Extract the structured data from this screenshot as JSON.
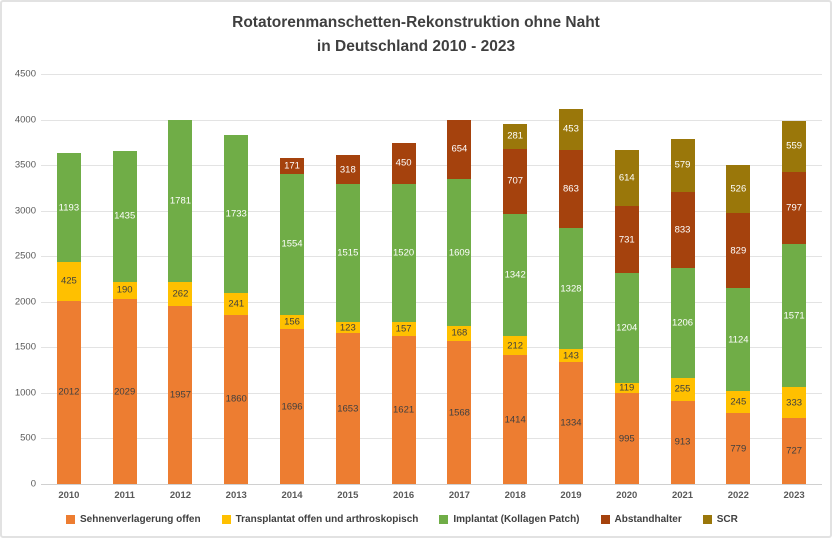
{
  "figure": {
    "title_line1": "Rotatorenmanschetten-Rekonstruktion ohne Naht",
    "title_line2": "in Deutschland 2010 - 2023"
  },
  "chart_data": {
    "type": "bar",
    "stacked": true,
    "title": "Rotatorenmanschetten-Rekonstruktion ohne Naht in Deutschland 2010 - 2023",
    "xlabel": "",
    "ylabel": "",
    "ylim": [
      0,
      4500
    ],
    "ytick_step": 500,
    "grid": true,
    "legend_position": "bottom",
    "categories": [
      "2010",
      "2011",
      "2012",
      "2013",
      "2014",
      "2015",
      "2016",
      "2017",
      "2018",
      "2019",
      "2020",
      "2021",
      "2022",
      "2023"
    ],
    "series": [
      {
        "name": "Sehnenverlagerung offen",
        "color": "#ED7D31",
        "label_color": "#3F3F3F",
        "values": [
          2012,
          2029,
          1957,
          1860,
          1696,
          1653,
          1621,
          1568,
          1414,
          1334,
          995,
          913,
          779,
          727
        ]
      },
      {
        "name": "Transplantat offen und arthroskopisch",
        "color": "#FFC000",
        "label_color": "#3F3F3F",
        "values": [
          425,
          190,
          262,
          241,
          156,
          123,
          157,
          168,
          212,
          143,
          119,
          255,
          245,
          333
        ]
      },
      {
        "name": "Implantat (Kollagen Patch)",
        "color": "#70AD47",
        "label_color": "#FFFFFF",
        "values": [
          1193,
          1435,
          1781,
          1733,
          1554,
          1515,
          1520,
          1609,
          1342,
          1328,
          1204,
          1206,
          1124,
          1571
        ]
      },
      {
        "name": "Abstandhalter",
        "color": "#A5420D",
        "label_color": "#FFFFFF",
        "values": [
          0,
          0,
          0,
          0,
          171,
          318,
          450,
          654,
          707,
          863,
          731,
          833,
          829,
          797
        ]
      },
      {
        "name": "SCR",
        "color": "#9A770A",
        "label_color": "#FFFFFF",
        "values": [
          0,
          0,
          0,
          0,
          0,
          0,
          0,
          0,
          281,
          453,
          614,
          579,
          526,
          559
        ]
      }
    ]
  },
  "layout_colors": {
    "gridline": "#E3E3E3",
    "axis_text": "#595959",
    "title_text": "#3F3F3F"
  }
}
